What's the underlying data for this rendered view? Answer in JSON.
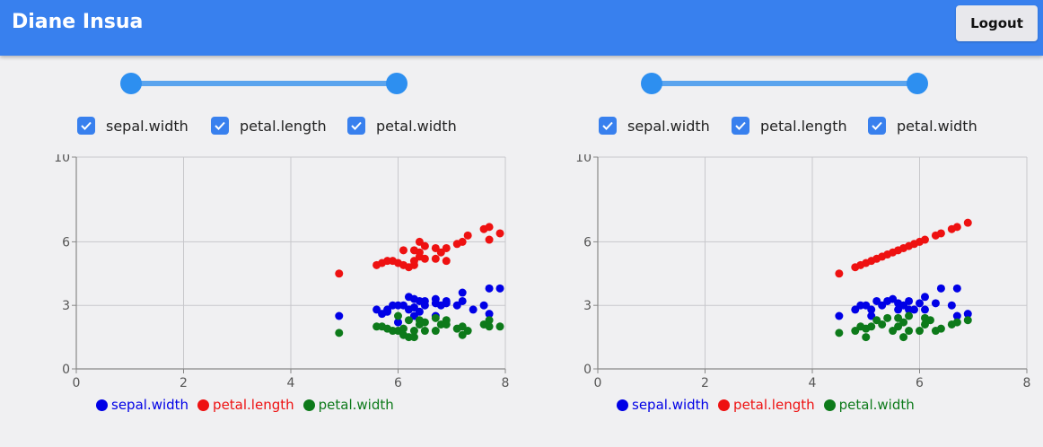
{
  "header": {
    "title": "Diane Insua",
    "logout_label": "Logout"
  },
  "colors": {
    "header": "#3880ee",
    "sepal.width": "#0000e6",
    "petal.length": "#ee1111",
    "petal.width": "#0d7a1a"
  },
  "panels": [
    {
      "checkboxes": [
        {
          "label": "sepal.width",
          "checked": true
        },
        {
          "label": "petal.length",
          "checked": true
        },
        {
          "label": "petal.width",
          "checked": true
        }
      ],
      "legend": [
        "sepal.width",
        "petal.length",
        "petal.width"
      ]
    },
    {
      "checkboxes": [
        {
          "label": "sepal.width",
          "checked": true
        },
        {
          "label": "petal.length",
          "checked": true
        },
        {
          "label": "petal.width",
          "checked": true
        }
      ],
      "legend": [
        "sepal.width",
        "petal.length",
        "petal.width"
      ]
    }
  ],
  "chart_data": [
    {
      "type": "scatter",
      "title": "",
      "xlabel": "",
      "ylabel": "",
      "xlim": [
        0,
        8
      ],
      "ylim": [
        0,
        10
      ],
      "xticks": [
        0,
        2,
        4,
        6,
        8
      ],
      "yticks": [
        0,
        3,
        6,
        10
      ],
      "grid": true,
      "legend_position": "bottom",
      "series": [
        {
          "name": "sepal.width",
          "color": "#0000e6",
          "points": [
            [
              4.9,
              2.5
            ],
            [
              5.6,
              2.8
            ],
            [
              5.7,
              2.6
            ],
            [
              5.8,
              2.8
            ],
            [
              5.8,
              2.7
            ],
            [
              5.9,
              3.0
            ],
            [
              6.0,
              3.0
            ],
            [
              6.0,
              2.2
            ],
            [
              6.1,
              3.0
            ],
            [
              6.2,
              3.4
            ],
            [
              6.2,
              2.8
            ],
            [
              6.3,
              3.3
            ],
            [
              6.3,
              2.9
            ],
            [
              6.3,
              2.5
            ],
            [
              6.4,
              3.2
            ],
            [
              6.4,
              2.7
            ],
            [
              6.5,
              3.0
            ],
            [
              6.5,
              3.2
            ],
            [
              6.7,
              3.3
            ],
            [
              6.7,
              3.1
            ],
            [
              6.7,
              2.5
            ],
            [
              6.8,
              3.0
            ],
            [
              6.9,
              3.2
            ],
            [
              6.9,
              3.1
            ],
            [
              7.1,
              3.0
            ],
            [
              7.2,
              3.6
            ],
            [
              7.2,
              3.2
            ],
            [
              7.4,
              2.8
            ],
            [
              7.6,
              3.0
            ],
            [
              7.7,
              3.8
            ],
            [
              7.7,
              2.6
            ],
            [
              7.9,
              3.8
            ]
          ]
        },
        {
          "name": "petal.length",
          "color": "#ee1111",
          "points": [
            [
              4.9,
              4.5
            ],
            [
              5.6,
              4.9
            ],
            [
              5.7,
              5.0
            ],
            [
              5.8,
              5.1
            ],
            [
              5.9,
              5.1
            ],
            [
              6.0,
              5.0
            ],
            [
              6.1,
              4.9
            ],
            [
              6.1,
              5.6
            ],
            [
              6.2,
              4.8
            ],
            [
              6.3,
              5.6
            ],
            [
              6.3,
              4.9
            ],
            [
              6.3,
              5.1
            ],
            [
              6.4,
              5.3
            ],
            [
              6.4,
              5.5
            ],
            [
              6.4,
              6.0
            ],
            [
              6.5,
              5.2
            ],
            [
              6.5,
              5.8
            ],
            [
              6.7,
              5.7
            ],
            [
              6.7,
              5.2
            ],
            [
              6.8,
              5.5
            ],
            [
              6.9,
              5.7
            ],
            [
              6.9,
              5.1
            ],
            [
              7.1,
              5.9
            ],
            [
              7.2,
              6.0
            ],
            [
              7.3,
              6.3
            ],
            [
              7.6,
              6.6
            ],
            [
              7.7,
              6.7
            ],
            [
              7.7,
              6.1
            ],
            [
              7.9,
              6.4
            ]
          ]
        },
        {
          "name": "petal.width",
          "color": "#0d7a1a",
          "points": [
            [
              4.9,
              1.7
            ],
            [
              5.6,
              2.0
            ],
            [
              5.7,
              2.0
            ],
            [
              5.8,
              1.9
            ],
            [
              5.9,
              1.8
            ],
            [
              6.0,
              1.8
            ],
            [
              6.0,
              2.5
            ],
            [
              6.1,
              1.6
            ],
            [
              6.1,
              1.9
            ],
            [
              6.2,
              1.5
            ],
            [
              6.2,
              2.3
            ],
            [
              6.3,
              1.8
            ],
            [
              6.3,
              1.5
            ],
            [
              6.4,
              2.1
            ],
            [
              6.4,
              2.3
            ],
            [
              6.5,
              1.8
            ],
            [
              6.5,
              2.2
            ],
            [
              6.7,
              2.4
            ],
            [
              6.7,
              1.8
            ],
            [
              6.8,
              2.1
            ],
            [
              6.9,
              2.3
            ],
            [
              6.9,
              2.1
            ],
            [
              7.1,
              1.9
            ],
            [
              7.2,
              1.6
            ],
            [
              7.2,
              2.0
            ],
            [
              7.3,
              1.8
            ],
            [
              7.6,
              2.1
            ],
            [
              7.7,
              2.3
            ],
            [
              7.7,
              2.0
            ],
            [
              7.9,
              2.0
            ]
          ]
        }
      ]
    },
    {
      "type": "scatter",
      "title": "",
      "xlabel": "",
      "ylabel": "",
      "xlim": [
        0,
        8
      ],
      "ylim": [
        0,
        10
      ],
      "xticks": [
        0,
        2,
        4,
        6,
        8
      ],
      "yticks": [
        0,
        3,
        6,
        10
      ],
      "grid": true,
      "legend_position": "bottom",
      "series": [
        {
          "name": "sepal.width",
          "color": "#0000e6",
          "points": [
            [
              4.5,
              2.5
            ],
            [
              4.8,
              2.8
            ],
            [
              4.9,
              3.0
            ],
            [
              5.0,
              3.0
            ],
            [
              5.1,
              2.8
            ],
            [
              5.1,
              2.5
            ],
            [
              5.2,
              3.2
            ],
            [
              5.3,
              3.0
            ],
            [
              5.4,
              3.2
            ],
            [
              5.5,
              3.3
            ],
            [
              5.6,
              2.8
            ],
            [
              5.6,
              3.1
            ],
            [
              5.7,
              3.0
            ],
            [
              5.8,
              3.2
            ],
            [
              5.8,
              2.8
            ],
            [
              5.9,
              2.8
            ],
            [
              6.0,
              3.1
            ],
            [
              6.1,
              3.4
            ],
            [
              6.1,
              2.8
            ],
            [
              6.3,
              3.1
            ],
            [
              6.6,
              3.0
            ],
            [
              6.7,
              2.5
            ],
            [
              6.9,
              2.6
            ],
            [
              6.4,
              3.8
            ],
            [
              6.7,
              3.8
            ]
          ]
        },
        {
          "name": "petal.length",
          "color": "#ee1111",
          "points": [
            [
              4.5,
              4.5
            ],
            [
              4.8,
              4.8
            ],
            [
              4.9,
              4.9
            ],
            [
              5.0,
              5.0
            ],
            [
              5.1,
              5.1
            ],
            [
              5.2,
              5.2
            ],
            [
              5.3,
              5.3
            ],
            [
              5.4,
              5.4
            ],
            [
              5.5,
              5.5
            ],
            [
              5.6,
              5.6
            ],
            [
              5.7,
              5.7
            ],
            [
              5.8,
              5.8
            ],
            [
              5.9,
              5.9
            ],
            [
              6.0,
              6.0
            ],
            [
              6.1,
              6.1
            ],
            [
              6.3,
              6.3
            ],
            [
              6.4,
              6.4
            ],
            [
              6.6,
              6.6
            ],
            [
              6.7,
              6.7
            ],
            [
              6.9,
              6.9
            ]
          ]
        },
        {
          "name": "petal.width",
          "color": "#0d7a1a",
          "points": [
            [
              4.5,
              1.7
            ],
            [
              4.8,
              1.8
            ],
            [
              4.9,
              2.0
            ],
            [
              5.0,
              1.9
            ],
            [
              5.0,
              1.5
            ],
            [
              5.1,
              2.0
            ],
            [
              5.2,
              2.3
            ],
            [
              5.3,
              2.1
            ],
            [
              5.4,
              2.4
            ],
            [
              5.5,
              1.8
            ],
            [
              5.6,
              2.0
            ],
            [
              5.6,
              2.4
            ],
            [
              5.7,
              2.2
            ],
            [
              5.7,
              1.5
            ],
            [
              5.8,
              2.5
            ],
            [
              5.8,
              1.8
            ],
            [
              6.0,
              1.8
            ],
            [
              6.1,
              2.4
            ],
            [
              6.1,
              2.1
            ],
            [
              6.3,
              1.8
            ],
            [
              6.6,
              2.1
            ],
            [
              6.7,
              2.2
            ],
            [
              6.9,
              2.3
            ],
            [
              6.4,
              1.9
            ],
            [
              6.2,
              2.3
            ]
          ]
        }
      ]
    }
  ]
}
